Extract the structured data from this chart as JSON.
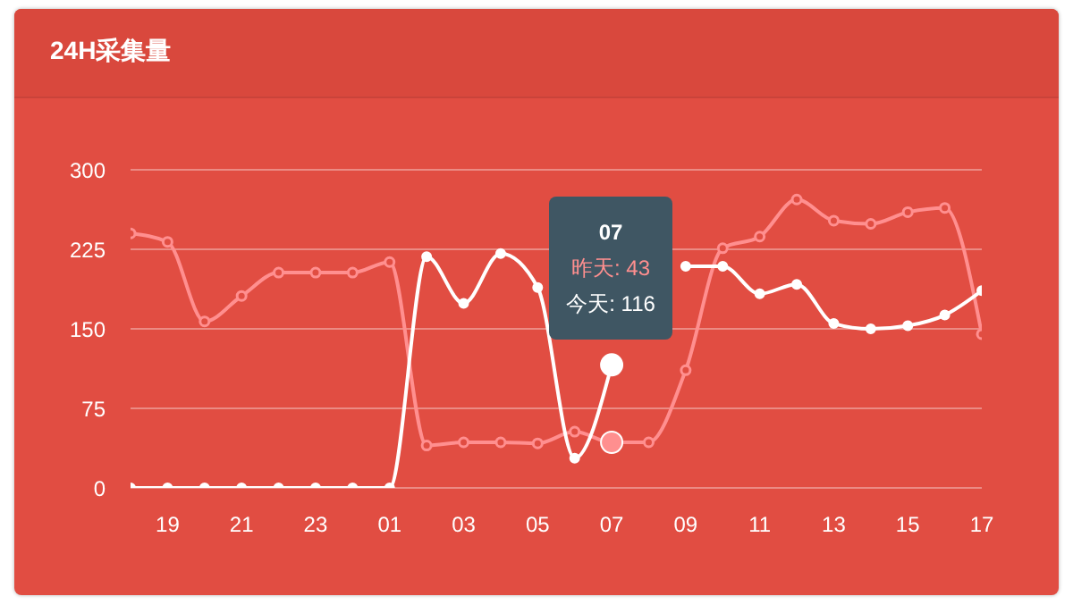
{
  "chart_data": {
    "type": "line",
    "title": "24H采集量",
    "categories": [
      null,
      "19",
      null,
      "21",
      null,
      "23",
      null,
      "01",
      null,
      "03",
      null,
      "05",
      null,
      "07",
      null,
      "09",
      null,
      "11",
      null,
      "13",
      null,
      "15",
      null,
      "17"
    ],
    "series": [
      {
        "color": "#ff8f8f",
        "values": [
          240,
          232,
          157,
          181,
          203,
          203,
          203,
          213,
          40,
          43,
          43,
          42,
          53,
          43,
          43,
          111,
          226,
          237,
          272,
          252,
          249,
          260,
          264,
          145
        ]
      },
      {
        "color": "#ffffff",
        "values": [
          0,
          0,
          0,
          0,
          0,
          0,
          0,
          0,
          218,
          174,
          221,
          189,
          28,
          116,
          null,
          209,
          209,
          183,
          192,
          155,
          150,
          153,
          163,
          186
        ]
      }
    ],
    "ylim": [
      0,
      300
    ],
    "yticks": [
      0,
      75,
      150,
      225,
      300
    ],
    "grid": "y",
    "marker": "circle",
    "annotations": [
      "07",
      "昨天: 43",
      "今天: 116"
    ]
  }
}
